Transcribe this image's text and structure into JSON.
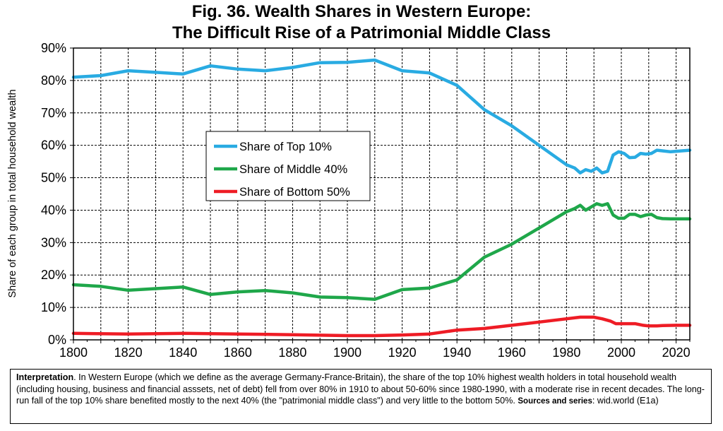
{
  "title_line1": "Fig. 36. Wealth Shares in Western Europe:",
  "title_line2": "The Difficult Rise of a Patrimonial Middle Class",
  "chart_data": {
    "type": "line",
    "title": "Fig. 36. Wealth Shares in Western Europe: The Difficult Rise of a Patrimonial Middle Class",
    "xlabel": "",
    "ylabel": "Share of each group in total household wealth",
    "xlim": [
      1800,
      2025
    ],
    "ylim": [
      0,
      90
    ],
    "x_ticks": [
      1800,
      1820,
      1840,
      1860,
      1880,
      1900,
      1920,
      1940,
      1960,
      1980,
      2000,
      2020
    ],
    "y_ticks": [
      "0%",
      "10%",
      "20%",
      "30%",
      "40%",
      "50%",
      "60%",
      "70%",
      "80%",
      "90%"
    ],
    "grid": true,
    "legend_position": "center-left",
    "series": [
      {
        "name": "Share of Top 10%",
        "color": "#29ABE2",
        "points": [
          [
            1800,
            81
          ],
          [
            1810,
            81.5
          ],
          [
            1820,
            83
          ],
          [
            1830,
            82.5
          ],
          [
            1840,
            82
          ],
          [
            1850,
            84.5
          ],
          [
            1860,
            83.5
          ],
          [
            1870,
            83
          ],
          [
            1880,
            84
          ],
          [
            1890,
            85.5
          ],
          [
            1900,
            85.6
          ],
          [
            1910,
            86.3
          ],
          [
            1920,
            83
          ],
          [
            1930,
            82.3
          ],
          [
            1940,
            78.5
          ],
          [
            1950,
            71
          ],
          [
            1960,
            66
          ],
          [
            1970,
            60
          ],
          [
            1980,
            54
          ],
          [
            1983,
            53
          ],
          [
            1985,
            51.5
          ],
          [
            1987,
            52.5
          ],
          [
            1989,
            52
          ],
          [
            1991,
            53
          ],
          [
            1993,
            51.5
          ],
          [
            1995,
            52
          ],
          [
            1997,
            57
          ],
          [
            1999,
            58
          ],
          [
            2001,
            57.5
          ],
          [
            2003,
            56.2
          ],
          [
            2005,
            56.3
          ],
          [
            2007,
            57.5
          ],
          [
            2009,
            57.3
          ],
          [
            2011,
            57.5
          ],
          [
            2013,
            58.5
          ],
          [
            2015,
            58.3
          ],
          [
            2018,
            58
          ],
          [
            2025,
            58.5
          ]
        ]
      },
      {
        "name": "Share of Middle 40%",
        "color": "#1FA74A",
        "points": [
          [
            1800,
            17
          ],
          [
            1810,
            16.5
          ],
          [
            1820,
            15.3
          ],
          [
            1830,
            15.8
          ],
          [
            1840,
            16.3
          ],
          [
            1850,
            14
          ],
          [
            1860,
            14.8
          ],
          [
            1870,
            15.2
          ],
          [
            1880,
            14.5
          ],
          [
            1890,
            13.2
          ],
          [
            1900,
            13
          ],
          [
            1910,
            12.5
          ],
          [
            1920,
            15.5
          ],
          [
            1930,
            16
          ],
          [
            1940,
            18.5
          ],
          [
            1950,
            25.5
          ],
          [
            1960,
            29.5
          ],
          [
            1970,
            34.5
          ],
          [
            1980,
            39.5
          ],
          [
            1983,
            40.5
          ],
          [
            1985,
            41.5
          ],
          [
            1987,
            40
          ],
          [
            1989,
            41
          ],
          [
            1991,
            42
          ],
          [
            1993,
            41.5
          ],
          [
            1995,
            42
          ],
          [
            1997,
            38.5
          ],
          [
            1999,
            37.5
          ],
          [
            2001,
            37.5
          ],
          [
            2003,
            38.7
          ],
          [
            2005,
            38.7
          ],
          [
            2007,
            38
          ],
          [
            2009,
            38.5
          ],
          [
            2011,
            38.7
          ],
          [
            2013,
            37.7
          ],
          [
            2015,
            37.4
          ],
          [
            2018,
            37.3
          ],
          [
            2025,
            37.3
          ]
        ]
      },
      {
        "name": "Share of Bottom 50%",
        "color": "#EE1C25",
        "points": [
          [
            1800,
            2
          ],
          [
            1820,
            1.8
          ],
          [
            1840,
            2
          ],
          [
            1860,
            1.8
          ],
          [
            1880,
            1.6
          ],
          [
            1900,
            1.3
          ],
          [
            1910,
            1.3
          ],
          [
            1920,
            1.5
          ],
          [
            1930,
            1.8
          ],
          [
            1940,
            3
          ],
          [
            1950,
            3.5
          ],
          [
            1960,
            4.5
          ],
          [
            1970,
            5.5
          ],
          [
            1980,
            6.5
          ],
          [
            1985,
            7
          ],
          [
            1990,
            7
          ],
          [
            1993,
            6.5
          ],
          [
            1996,
            5.8
          ],
          [
            1998,
            5
          ],
          [
            2000,
            5
          ],
          [
            2005,
            5
          ],
          [
            2008,
            4.5
          ],
          [
            2010,
            4.3
          ],
          [
            2013,
            4.3
          ],
          [
            2015,
            4.4
          ],
          [
            2020,
            4.5
          ],
          [
            2025,
            4.5
          ]
        ]
      }
    ]
  },
  "interpretation": {
    "label": "Interpretation",
    "text": ". In Western Europe (which we define as the average Germany-France-Britain), the share of the top 10% highest wealth holders in total household wealth (including housing, business and financial asssets, net of debt) fell from over 80% in 1910 to about 50-60% since 1980-1990, with a moderate rise in recent decades. The long-run fall of the top 10% share benefited mostly to the next 40% (the \"patrimonial middle class\") and very little to the bottom 50%.  ",
    "sources": "Sources and series",
    "source_ref": ": wid.world (E1a)"
  }
}
